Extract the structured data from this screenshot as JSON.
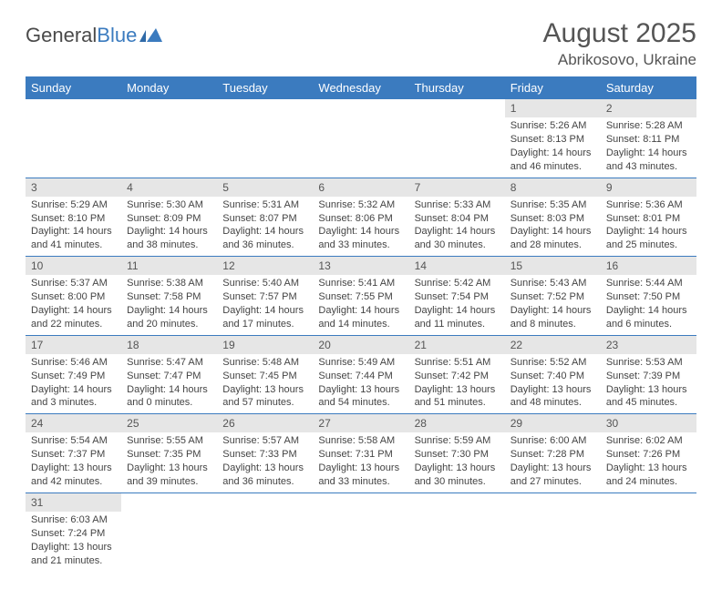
{
  "logo": {
    "text1": "General",
    "text2": "Blue"
  },
  "title": "August 2025",
  "location": "Abrikosovo, Ukraine",
  "colors": {
    "header_bg": "#3b7bbf",
    "header_text": "#ffffff",
    "daynum_bg": "#e6e6e6",
    "row_border": "#3b7bbf",
    "body_text": "#444444"
  },
  "weekdays": [
    "Sunday",
    "Monday",
    "Tuesday",
    "Wednesday",
    "Thursday",
    "Friday",
    "Saturday"
  ],
  "weeks": [
    [
      null,
      null,
      null,
      null,
      null,
      {
        "n": "1",
        "sr": "Sunrise: 5:26 AM",
        "ss": "Sunset: 8:13 PM",
        "dl": "Daylight: 14 hours and 46 minutes."
      },
      {
        "n": "2",
        "sr": "Sunrise: 5:28 AM",
        "ss": "Sunset: 8:11 PM",
        "dl": "Daylight: 14 hours and 43 minutes."
      }
    ],
    [
      {
        "n": "3",
        "sr": "Sunrise: 5:29 AM",
        "ss": "Sunset: 8:10 PM",
        "dl": "Daylight: 14 hours and 41 minutes."
      },
      {
        "n": "4",
        "sr": "Sunrise: 5:30 AM",
        "ss": "Sunset: 8:09 PM",
        "dl": "Daylight: 14 hours and 38 minutes."
      },
      {
        "n": "5",
        "sr": "Sunrise: 5:31 AM",
        "ss": "Sunset: 8:07 PM",
        "dl": "Daylight: 14 hours and 36 minutes."
      },
      {
        "n": "6",
        "sr": "Sunrise: 5:32 AM",
        "ss": "Sunset: 8:06 PM",
        "dl": "Daylight: 14 hours and 33 minutes."
      },
      {
        "n": "7",
        "sr": "Sunrise: 5:33 AM",
        "ss": "Sunset: 8:04 PM",
        "dl": "Daylight: 14 hours and 30 minutes."
      },
      {
        "n": "8",
        "sr": "Sunrise: 5:35 AM",
        "ss": "Sunset: 8:03 PM",
        "dl": "Daylight: 14 hours and 28 minutes."
      },
      {
        "n": "9",
        "sr": "Sunrise: 5:36 AM",
        "ss": "Sunset: 8:01 PM",
        "dl": "Daylight: 14 hours and 25 minutes."
      }
    ],
    [
      {
        "n": "10",
        "sr": "Sunrise: 5:37 AM",
        "ss": "Sunset: 8:00 PM",
        "dl": "Daylight: 14 hours and 22 minutes."
      },
      {
        "n": "11",
        "sr": "Sunrise: 5:38 AM",
        "ss": "Sunset: 7:58 PM",
        "dl": "Daylight: 14 hours and 20 minutes."
      },
      {
        "n": "12",
        "sr": "Sunrise: 5:40 AM",
        "ss": "Sunset: 7:57 PM",
        "dl": "Daylight: 14 hours and 17 minutes."
      },
      {
        "n": "13",
        "sr": "Sunrise: 5:41 AM",
        "ss": "Sunset: 7:55 PM",
        "dl": "Daylight: 14 hours and 14 minutes."
      },
      {
        "n": "14",
        "sr": "Sunrise: 5:42 AM",
        "ss": "Sunset: 7:54 PM",
        "dl": "Daylight: 14 hours and 11 minutes."
      },
      {
        "n": "15",
        "sr": "Sunrise: 5:43 AM",
        "ss": "Sunset: 7:52 PM",
        "dl": "Daylight: 14 hours and 8 minutes."
      },
      {
        "n": "16",
        "sr": "Sunrise: 5:44 AM",
        "ss": "Sunset: 7:50 PM",
        "dl": "Daylight: 14 hours and 6 minutes."
      }
    ],
    [
      {
        "n": "17",
        "sr": "Sunrise: 5:46 AM",
        "ss": "Sunset: 7:49 PM",
        "dl": "Daylight: 14 hours and 3 minutes."
      },
      {
        "n": "18",
        "sr": "Sunrise: 5:47 AM",
        "ss": "Sunset: 7:47 PM",
        "dl": "Daylight: 14 hours and 0 minutes."
      },
      {
        "n": "19",
        "sr": "Sunrise: 5:48 AM",
        "ss": "Sunset: 7:45 PM",
        "dl": "Daylight: 13 hours and 57 minutes."
      },
      {
        "n": "20",
        "sr": "Sunrise: 5:49 AM",
        "ss": "Sunset: 7:44 PM",
        "dl": "Daylight: 13 hours and 54 minutes."
      },
      {
        "n": "21",
        "sr": "Sunrise: 5:51 AM",
        "ss": "Sunset: 7:42 PM",
        "dl": "Daylight: 13 hours and 51 minutes."
      },
      {
        "n": "22",
        "sr": "Sunrise: 5:52 AM",
        "ss": "Sunset: 7:40 PM",
        "dl": "Daylight: 13 hours and 48 minutes."
      },
      {
        "n": "23",
        "sr": "Sunrise: 5:53 AM",
        "ss": "Sunset: 7:39 PM",
        "dl": "Daylight: 13 hours and 45 minutes."
      }
    ],
    [
      {
        "n": "24",
        "sr": "Sunrise: 5:54 AM",
        "ss": "Sunset: 7:37 PM",
        "dl": "Daylight: 13 hours and 42 minutes."
      },
      {
        "n": "25",
        "sr": "Sunrise: 5:55 AM",
        "ss": "Sunset: 7:35 PM",
        "dl": "Daylight: 13 hours and 39 minutes."
      },
      {
        "n": "26",
        "sr": "Sunrise: 5:57 AM",
        "ss": "Sunset: 7:33 PM",
        "dl": "Daylight: 13 hours and 36 minutes."
      },
      {
        "n": "27",
        "sr": "Sunrise: 5:58 AM",
        "ss": "Sunset: 7:31 PM",
        "dl": "Daylight: 13 hours and 33 minutes."
      },
      {
        "n": "28",
        "sr": "Sunrise: 5:59 AM",
        "ss": "Sunset: 7:30 PM",
        "dl": "Daylight: 13 hours and 30 minutes."
      },
      {
        "n": "29",
        "sr": "Sunrise: 6:00 AM",
        "ss": "Sunset: 7:28 PM",
        "dl": "Daylight: 13 hours and 27 minutes."
      },
      {
        "n": "30",
        "sr": "Sunrise: 6:02 AM",
        "ss": "Sunset: 7:26 PM",
        "dl": "Daylight: 13 hours and 24 minutes."
      }
    ],
    [
      {
        "n": "31",
        "sr": "Sunrise: 6:03 AM",
        "ss": "Sunset: 7:24 PM",
        "dl": "Daylight: 13 hours and 21 minutes."
      },
      null,
      null,
      null,
      null,
      null,
      null
    ]
  ]
}
